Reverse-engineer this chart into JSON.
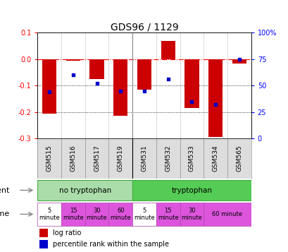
{
  "title": "GDS96 / 1129",
  "samples": [
    "GSM515",
    "GSM516",
    "GSM517",
    "GSM519",
    "GSM531",
    "GSM532",
    "GSM533",
    "GSM534",
    "GSM565"
  ],
  "log_ratios": [
    -0.205,
    -0.005,
    -0.075,
    -0.215,
    -0.115,
    0.068,
    -0.185,
    -0.295,
    -0.015
  ],
  "percentile_ranks": [
    44,
    60,
    52,
    45,
    45,
    56,
    35,
    32,
    75
  ],
  "ylim_left": [
    -0.3,
    0.1
  ],
  "ylim_right": [
    0,
    100
  ],
  "yticks_left": [
    0.1,
    0.0,
    -0.1,
    -0.2,
    -0.3
  ],
  "yticks_right": [
    100,
    75,
    50,
    25,
    0
  ],
  "bar_color": "#cc0000",
  "dot_color": "#0000cc",
  "agent_no_tryp_color": "#aaddaa",
  "agent_tryp_color": "#55cc55",
  "agent_border_color": "#44aa44",
  "time_white_color": "#ffffff",
  "time_pink_color": "#dd55dd",
  "time_pink_border": "#aa44aa",
  "sample_bg_color": "#cccccc",
  "sample_cell_color": "#dddddd",
  "background_color": "#ffffff",
  "title_fontsize": 10,
  "tick_fontsize": 7,
  "bar_label_fontsize": 6.5,
  "agent_time_label_fontsize": 8,
  "time_cell_fontsize": 6,
  "legend_fontsize": 7
}
